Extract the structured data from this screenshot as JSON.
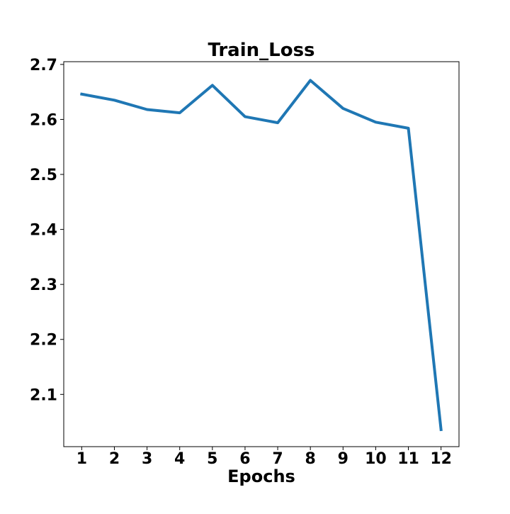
{
  "chart_data": {
    "type": "line",
    "title": "Train_Loss",
    "xlabel": "Epochs",
    "ylabel": "",
    "x": [
      1,
      2,
      3,
      4,
      5,
      6,
      7,
      8,
      9,
      10,
      11,
      12
    ],
    "x_tick_labels": [
      "1",
      "2",
      "3",
      "4",
      "5",
      "6",
      "7",
      "8",
      "9",
      "10",
      "11",
      "12"
    ],
    "xlim": [
      0.45,
      12.55
    ],
    "ylim": [
      2.005,
      2.705
    ],
    "y_ticks": [
      2.1,
      2.2,
      2.3,
      2.4,
      2.5,
      2.6,
      2.7
    ],
    "y_tick_labels": [
      "2.1",
      "2.2",
      "2.3",
      "2.4",
      "2.5",
      "2.6",
      "2.7"
    ],
    "grid": false,
    "legend": "none",
    "series": [
      {
        "values": [
          2.646,
          2.635,
          2.618,
          2.612,
          2.662,
          2.605,
          2.594,
          2.671,
          2.62,
          2.595,
          2.584,
          2.036
        ],
        "color": "#1f77b4"
      }
    ]
  }
}
